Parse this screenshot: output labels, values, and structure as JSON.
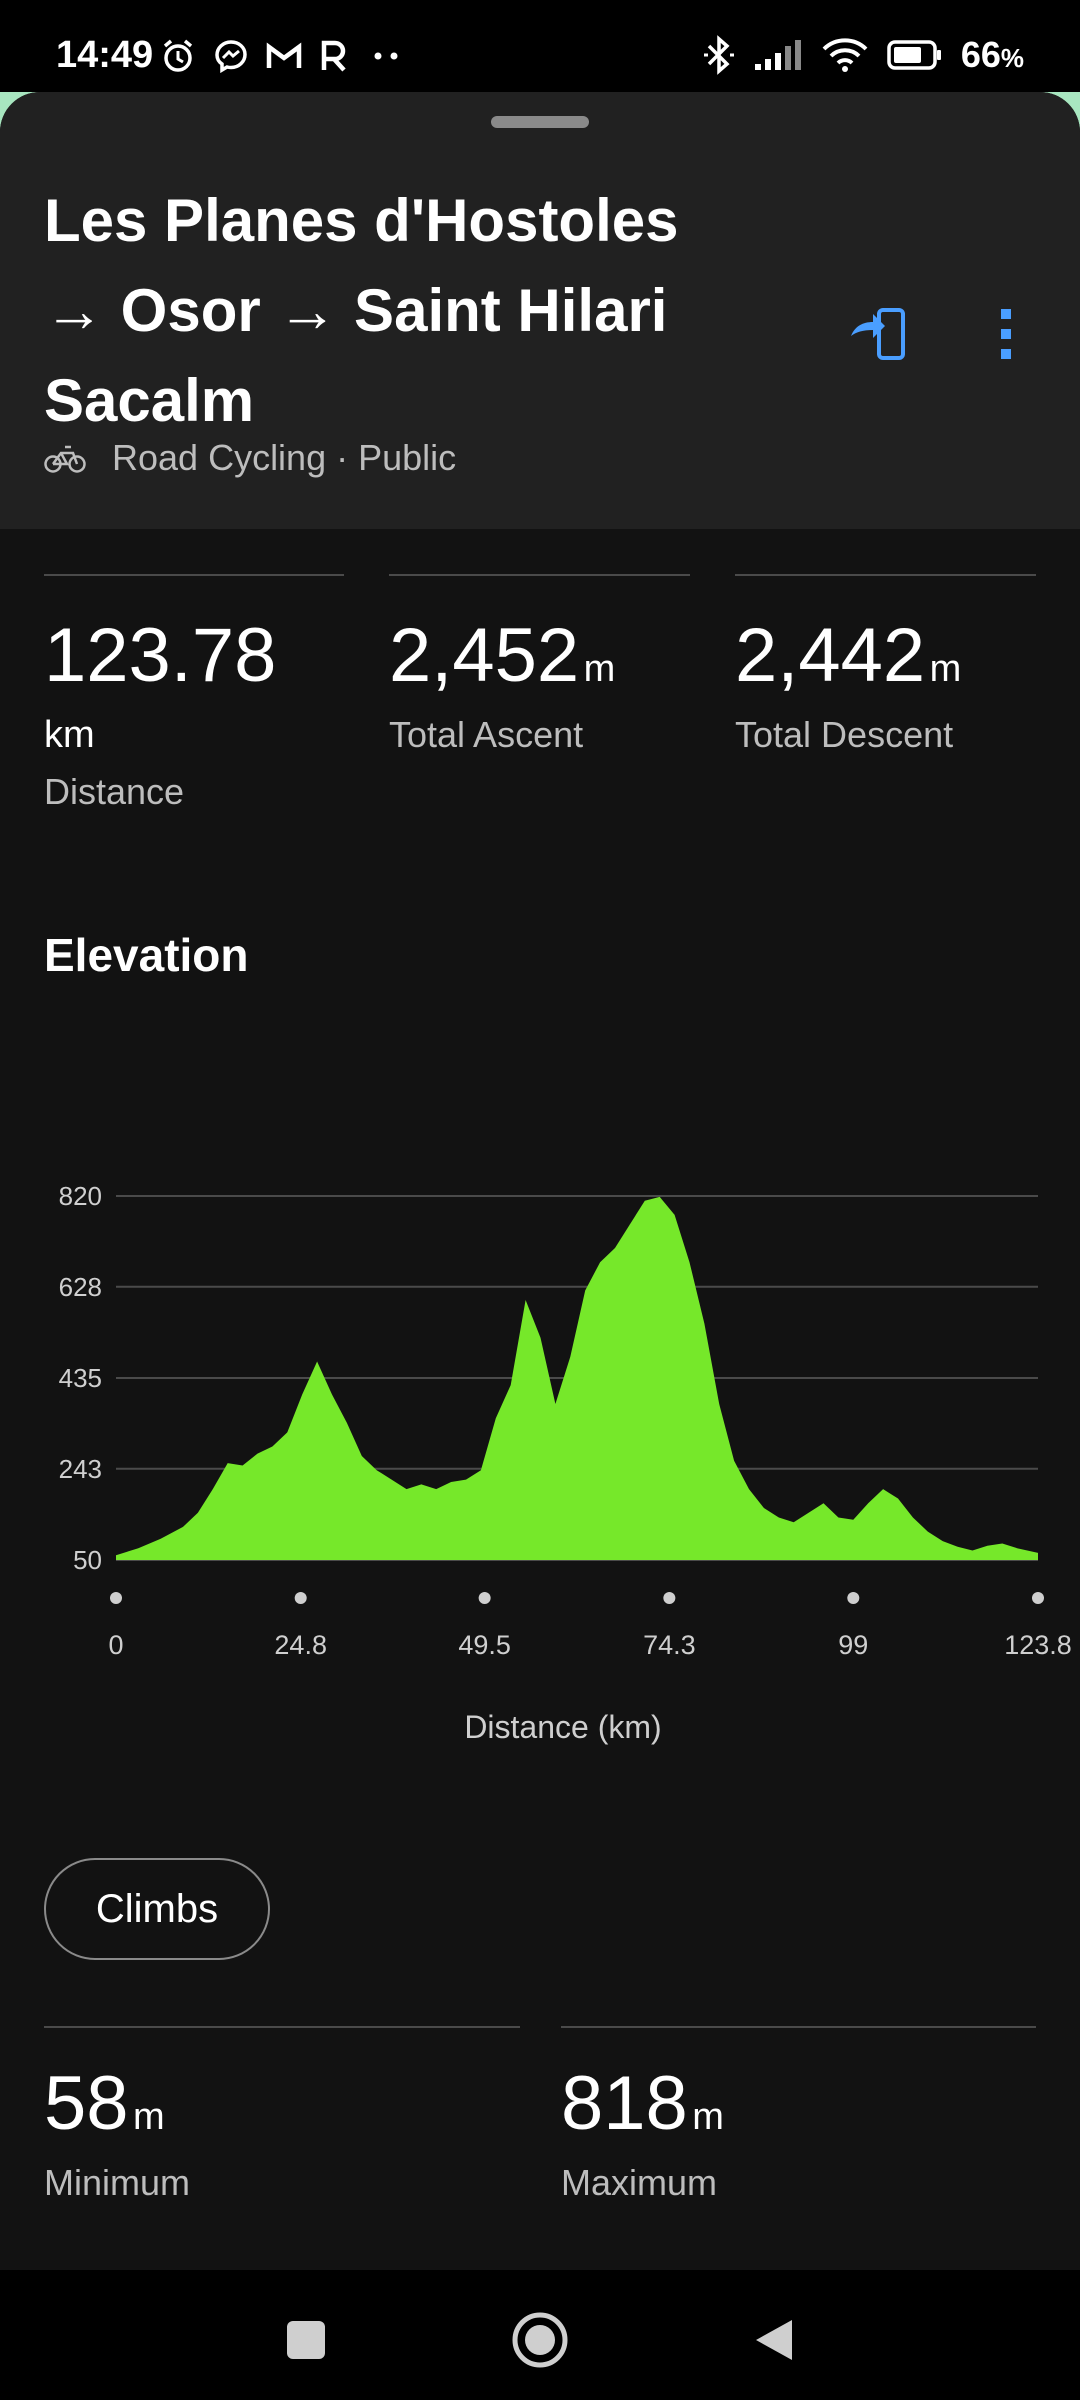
{
  "status_bar": {
    "time": "14:49",
    "battery": "66",
    "battery_unit": "%"
  },
  "route": {
    "title_line1": "Les Planes d'Hostoles",
    "title_line2": "→ Osor → Saint Hilari",
    "title_line3": "Sacalm",
    "activity": "Road Cycling · Public"
  },
  "stats": {
    "distance": {
      "value": "123.78",
      "unit": "km",
      "label": "Distance"
    },
    "ascent": {
      "value": "2,452",
      "unit": "m",
      "label": "Total Ascent"
    },
    "descent": {
      "value": "2,442",
      "unit": "m",
      "label": "Total Descent"
    }
  },
  "elevation": {
    "title": "Elevation",
    "climbs_label": "Climbs",
    "minimum": {
      "value": "58",
      "unit": "m",
      "label": "Minimum"
    },
    "maximum": {
      "value": "818",
      "unit": "m",
      "label": "Maximum"
    }
  },
  "colors": {
    "fill": "#76e82a",
    "accent": "#4a9eff"
  },
  "chart_data": {
    "type": "area",
    "xlabel": "Distance (km)",
    "ylabel": "",
    "x_ticks": [
      "0",
      "24.8",
      "49.5",
      "74.3",
      "99",
      "123.8"
    ],
    "y_ticks": [
      "820",
      "628",
      "435",
      "243",
      "50"
    ],
    "xlim": [
      0,
      123.8
    ],
    "ylim": [
      50,
      820
    ],
    "grid": true,
    "x": [
      0,
      3,
      6,
      9,
      11,
      13,
      15,
      17,
      19,
      21,
      23,
      25,
      27,
      29,
      31,
      33,
      35,
      37,
      39,
      41,
      43,
      45,
      47,
      49,
      51,
      53,
      55,
      57,
      59,
      61,
      63,
      65,
      67,
      69,
      71,
      73,
      75,
      77,
      79,
      81,
      83,
      85,
      87,
      89,
      91,
      93,
      95,
      97,
      99,
      101,
      103,
      105,
      107,
      109,
      111,
      113,
      115,
      117,
      119,
      121,
      123.8
    ],
    "values": [
      60,
      75,
      95,
      120,
      150,
      200,
      255,
      250,
      275,
      290,
      320,
      400,
      470,
      400,
      340,
      270,
      240,
      220,
      200,
      210,
      200,
      215,
      220,
      240,
      350,
      420,
      600,
      520,
      380,
      480,
      620,
      680,
      710,
      760,
      810,
      818,
      780,
      680,
      550,
      380,
      260,
      200,
      160,
      140,
      130,
      150,
      170,
      140,
      135,
      170,
      200,
      180,
      140,
      110,
      90,
      78,
      70,
      80,
      85,
      75,
      65
    ]
  }
}
